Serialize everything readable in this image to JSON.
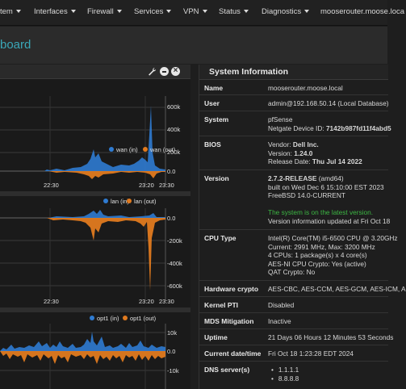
{
  "nav": {
    "items": [
      "tem",
      "Interfaces",
      "Firewall",
      "Services",
      "VPN",
      "Status",
      "Diagnostics",
      "mooserouter.moose.loca"
    ]
  },
  "page": {
    "title": "board"
  },
  "graphs": [
    {
      "legend_in": "wan (in)",
      "legend_out": "wan (out)",
      "y_ticks": [
        "600k",
        "400k",
        "200k",
        "0.0"
      ],
      "x_ticks": [
        "22:30",
        "23:20",
        "23:30"
      ]
    },
    {
      "legend_in": "lan (in)",
      "legend_out": "lan (out)",
      "y_ticks": [
        "0.0",
        "-200k",
        "-400k",
        "-600k"
      ],
      "x_ticks": [
        "22:30",
        "23:20",
        "23:30"
      ]
    },
    {
      "legend_in": "opt1 (in)",
      "legend_out": "opt1 (out)",
      "y_ticks": [
        "10k",
        "0.0",
        "-10k"
      ],
      "x_ticks": []
    }
  ],
  "colors": {
    "in": "#2f7bd1",
    "out": "#e07a1f",
    "accent": "#3aa7b8",
    "green": "#3cb543"
  },
  "system": {
    "title": "System Information",
    "name_label": "Name",
    "name": "mooserouter.moose.local",
    "user_label": "User",
    "user": "admin@192.168.50.14 (Local Database)",
    "system_label": "System",
    "system_line1": "pfSense",
    "system_line2_prefix": "Netgate Device ID: ",
    "system_device_id": "7142b987fd11f4abd5",
    "bios_label": "BIOS",
    "bios_vendor_prefix": "Vendor: ",
    "bios_vendor": "Dell Inc.",
    "bios_version_prefix": "Version: ",
    "bios_version": "1.24.0",
    "bios_date_prefix": "Release Date: ",
    "bios_date": "Thu Jul 14 2022",
    "version_label": "Version",
    "version_release": "2.7.2-RELEASE",
    "version_arch": " (amd64)",
    "version_built": "built on Wed Dec 6 15:10:00 EST 2023",
    "version_freebsd": "FreeBSD 14.0-CURRENT",
    "version_latest": "The system is on the latest version.",
    "version_updated": "Version information updated at Fri Oct 18",
    "cpu_label": "CPU Type",
    "cpu_line1": "Intel(R) Core(TM) i5-6500 CPU @ 3.20GHz",
    "cpu_line2": "Current: 2991 MHz, Max: 3200 MHz",
    "cpu_line3": "4 CPUs: 1 package(s) x 4 core(s)",
    "cpu_line4": "AES-NI CPU Crypto: Yes (active)",
    "cpu_line5": "QAT Crypto: No",
    "hwcrypto_label": "Hardware crypto",
    "hwcrypto": "AES-CBC, AES-CCM, AES-GCM, AES-ICM, A",
    "pti_label": "Kernel PTI",
    "pti": "Disabled",
    "mds_label": "MDS Mitigation",
    "mds": "Inactive",
    "uptime_label": "Uptime",
    "uptime": "21 Days 06 Hours 12 Minutes 53 Seconds",
    "datetime_label": "Current date/time",
    "datetime": "Fri Oct 18 1:23:28 EDT 2024",
    "dns_label": "DNS server(s)",
    "dns": [
      "1.1.1.1",
      "8.8.8.8"
    ]
  }
}
